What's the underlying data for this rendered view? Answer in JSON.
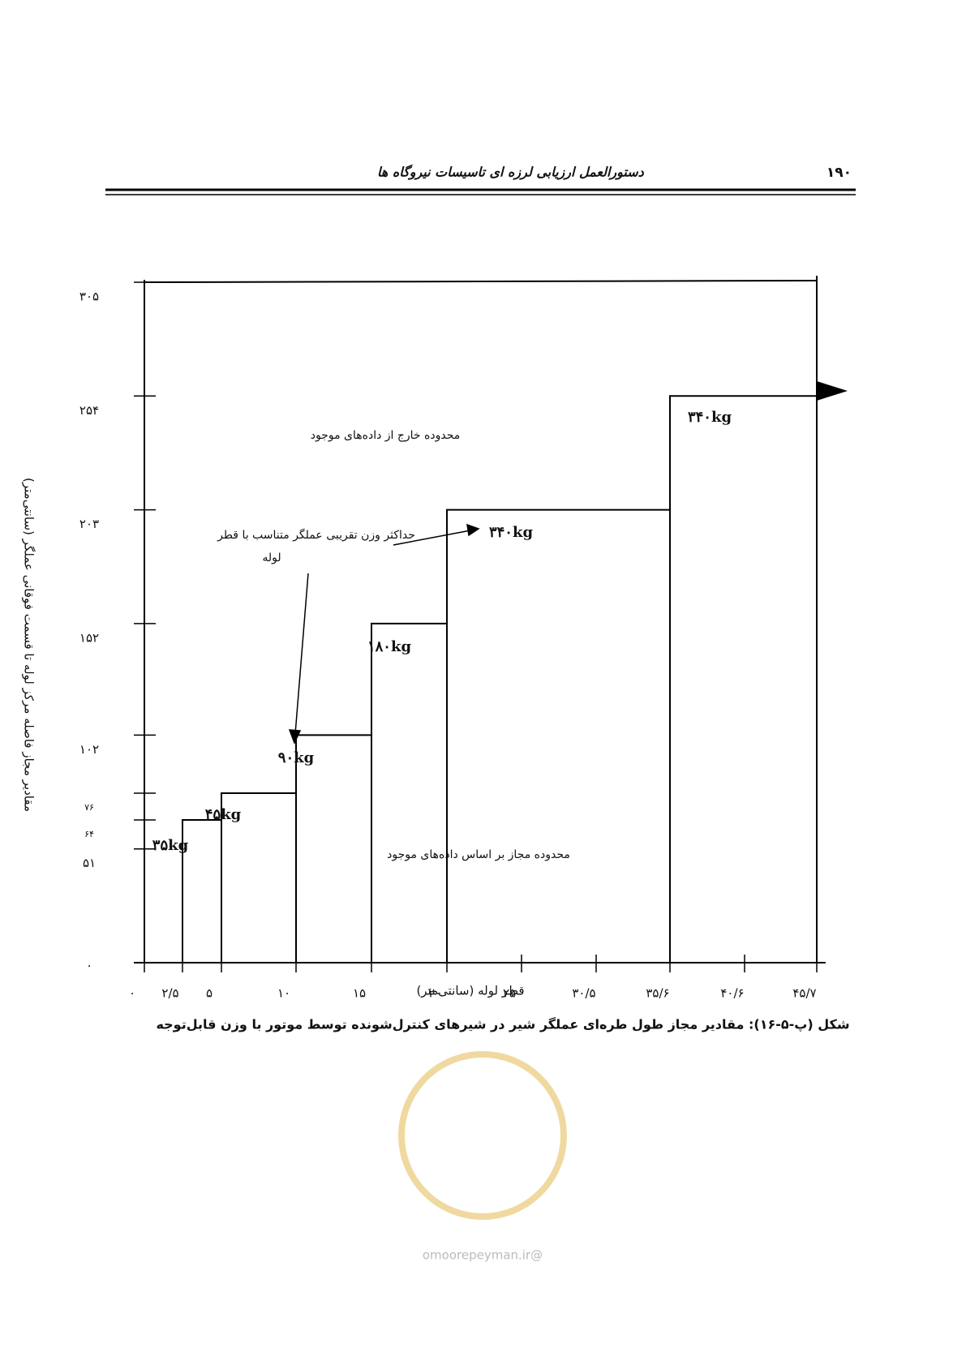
{
  "header": {
    "title": "دستورالعمل ارزیابی لرزه ای تاسیسات نیروگاه ها",
    "page": "۱۹۰"
  },
  "chart_data": {
    "type": "step",
    "x_label": "قطر لوله (سانتی‌متر)",
    "y_label": "مقادیر مجاز فاصله مرکز لوله تا قسمت فوقانی عملگر (سانتی‌متر)",
    "xlim": [
      0,
      45.7
    ],
    "ylim": [
      0,
      305
    ],
    "xticks": [
      {
        "value": 0,
        "label": "۰"
      },
      {
        "value": 2.5,
        "label": "۲/۵"
      },
      {
        "value": 5,
        "label": "۵"
      },
      {
        "value": 10,
        "label": "۱۰"
      },
      {
        "value": 15,
        "label": "۱۵"
      },
      {
        "value": 20,
        "label": "۲۰"
      },
      {
        "value": 25,
        "label": "۲۵"
      },
      {
        "value": 30.5,
        "label": "۳۰/۵"
      },
      {
        "value": 35.6,
        "label": "۳۵/۶"
      },
      {
        "value": 40.6,
        "label": "۴۰/۶"
      },
      {
        "value": 45.7,
        "label": "۴۵/۷"
      }
    ],
    "yticks": [
      {
        "value": 0,
        "label": "۰"
      },
      {
        "value": 51,
        "label": "۵۱"
      },
      {
        "value": 64,
        "label": "۶۴"
      },
      {
        "value": 76,
        "label": "۷۶"
      },
      {
        "value": 102,
        "label": "۱۰۲"
      },
      {
        "value": 152,
        "label": "۱۵۲"
      },
      {
        "value": 203,
        "label": "۲۰۳"
      },
      {
        "value": 254,
        "label": "۲۵۴"
      },
      {
        "value": 305,
        "label": "۳۰۵"
      }
    ],
    "steps": [
      {
        "x": [
          2.5,
          5
        ],
        "y": 64,
        "label": "۳۵kg"
      },
      {
        "x": [
          5,
          10
        ],
        "y": 76,
        "label": "۴۵kg"
      },
      {
        "x": [
          10,
          15
        ],
        "y": 102,
        "label": "۹۰kg"
      },
      {
        "x": [
          15,
          20
        ],
        "y": 152,
        "label": "۱۸۰kg"
      },
      {
        "x": [
          20,
          35.6
        ],
        "y": 203,
        "label": "۳۴۰kg"
      },
      {
        "x": [
          35.6,
          45.7
        ],
        "y": 254,
        "label": "۳۴۰kg"
      }
    ],
    "annotations": [
      "محدوده خارج از داده‌های موجود",
      "حداکثر وزن تقریبی عملگر متناسب با قطر",
      "لوله",
      "محدوده مجاز بر اساس داده‌های موجود"
    ]
  },
  "caption": "شکل (پ-۵-۱۶): مقادیر مجاز طول طره‌ای عملگر شیر در شیرهای  کنترل‌شونده توسط موتور با وزن قابل‌توجه",
  "watermark": "@omoorepeyman.ir"
}
